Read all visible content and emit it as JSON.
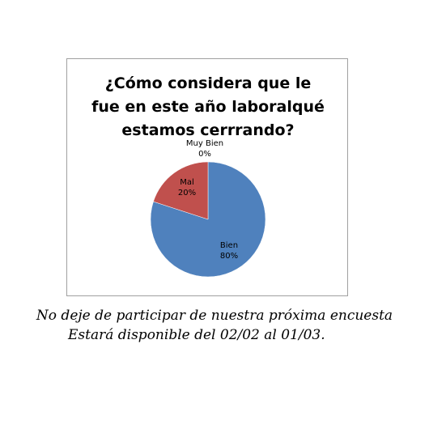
{
  "chart_data": {
    "type": "pie",
    "title_lines": [
      "¿Cómo considera que le",
      "fue en este año laboralqué",
      "estamos cerrrando?"
    ],
    "categories": [
      "Muy Bien",
      "Bien",
      "Mal"
    ],
    "values": [
      0,
      80,
      20
    ],
    "labels": [
      "0%",
      "80%",
      "20%"
    ],
    "colors": [
      "#4f81bd",
      "#4f81bd",
      "#c0504d"
    ],
    "legend": "none"
  },
  "footnote": {
    "line1": "No deje de participar de nuestra próxima encuesta",
    "line2": "Estará disponible del  02/02 al 01/03."
  }
}
